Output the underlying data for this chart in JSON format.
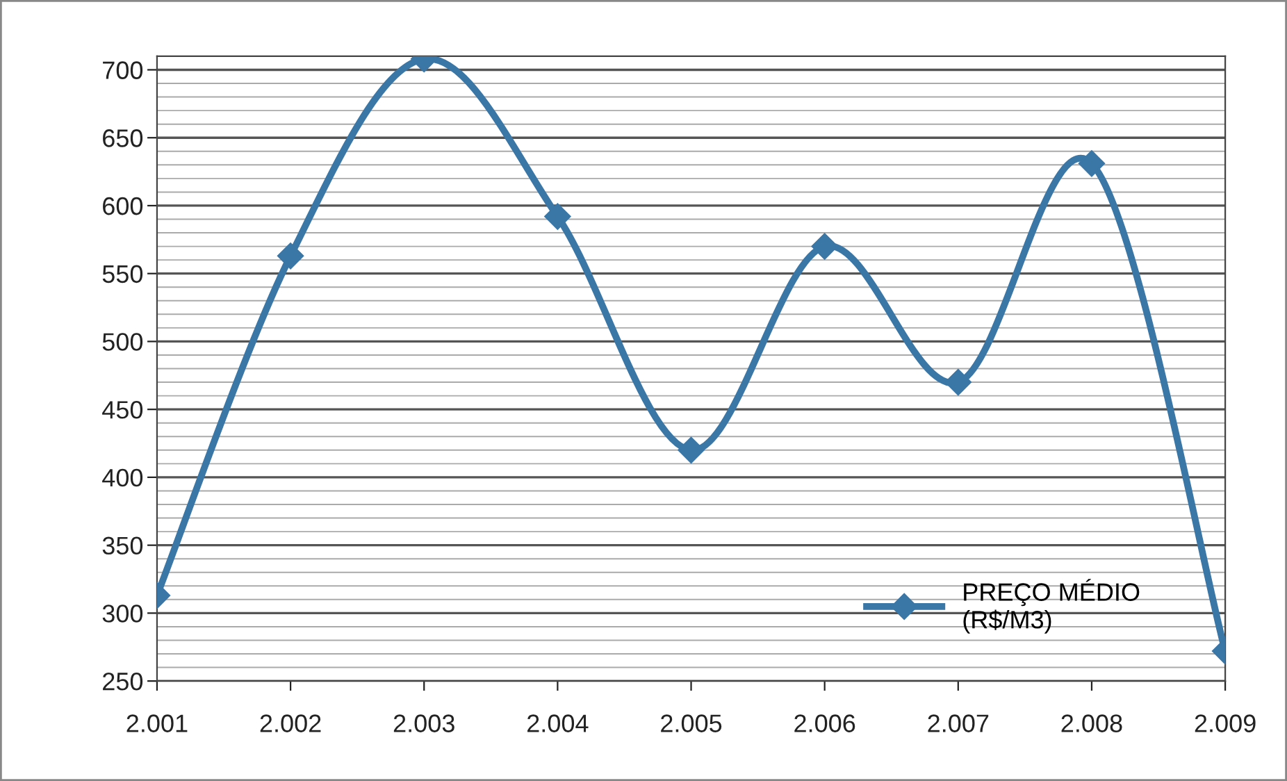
{
  "chart_data": {
    "type": "line",
    "categories": [
      "2.001",
      "2.002",
      "2.003",
      "2.004",
      "2.005",
      "2.006",
      "2.007",
      "2.008",
      "2.009"
    ],
    "series": [
      {
        "name": "PREÇO MÉDIO\n(R$/M3)",
        "color": "#3a76a6",
        "values": [
          313,
          563,
          708,
          592,
          420,
          570,
          470,
          631,
          272
        ]
      }
    ],
    "ylim": [
      250,
      710
    ],
    "yticks": [
      250,
      {
        "value": 260,
        "label": null
      },
      {
        "value": 270,
        "label": null
      },
      {
        "value": 280,
        "label": null
      },
      {
        "value": 290,
        "label": null
      },
      300,
      {
        "value": 310,
        "label": null
      },
      {
        "value": 320,
        "label": null
      },
      {
        "value": 330,
        "label": null
      },
      {
        "value": 340,
        "label": null
      },
      350,
      {
        "value": 360,
        "label": null
      },
      {
        "value": 370,
        "label": null
      },
      {
        "value": 380,
        "label": null
      },
      {
        "value": 390,
        "label": null
      },
      400,
      {
        "value": 410,
        "label": null
      },
      {
        "value": 420,
        "label": null
      },
      {
        "value": 430,
        "label": null
      },
      {
        "value": 440,
        "label": null
      },
      450,
      {
        "value": 460,
        "label": null
      },
      {
        "value": 470,
        "label": null
      },
      {
        "value": 480,
        "label": null
      },
      {
        "value": 490,
        "label": null
      },
      500,
      {
        "value": 510,
        "label": null
      },
      {
        "value": 520,
        "label": null
      },
      {
        "value": 530,
        "label": null
      },
      {
        "value": 540,
        "label": null
      },
      550,
      {
        "value": 560,
        "label": null
      },
      {
        "value": 570,
        "label": null
      },
      {
        "value": 580,
        "label": null
      },
      {
        "value": 590,
        "label": null
      },
      600,
      {
        "value": 610,
        "label": null
      },
      {
        "value": 620,
        "label": null
      },
      {
        "value": 630,
        "label": null
      },
      {
        "value": 640,
        "label": null
      },
      650,
      {
        "value": 660,
        "label": null
      },
      {
        "value": 670,
        "label": null
      },
      {
        "value": 680,
        "label": null
      },
      {
        "value": 690,
        "label": null
      },
      700,
      {
        "value": 710,
        "label": null
      }
    ],
    "grid": "y",
    "legend": "bottom right",
    "marker": "diamond",
    "line_style": "solid"
  }
}
